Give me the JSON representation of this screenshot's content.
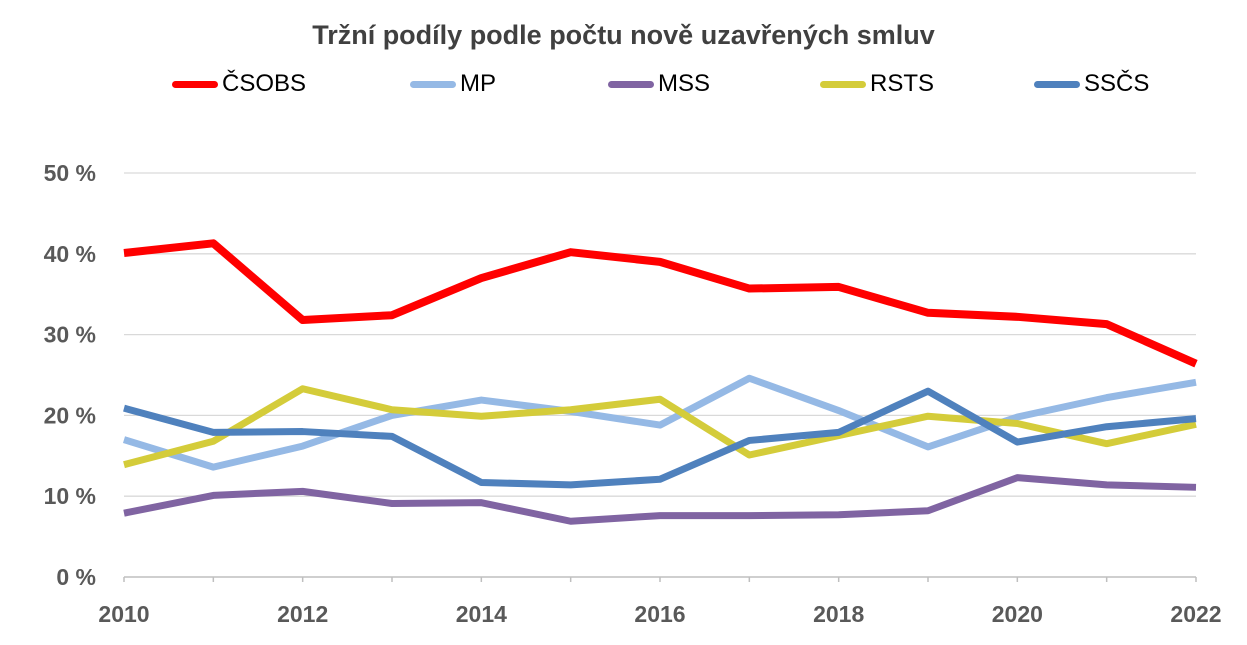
{
  "chart_data": {
    "type": "line",
    "title": "Tržní podíly podle počtu nově uzavřených smluv",
    "xlabel": "",
    "ylabel": "",
    "x": [
      2010,
      2011,
      2012,
      2013,
      2014,
      2015,
      2016,
      2017,
      2018,
      2019,
      2020,
      2021,
      2022
    ],
    "x_tick_labels": [
      "2010",
      "2012",
      "2014",
      "2016",
      "2018",
      "2020",
      "2022"
    ],
    "y_tick_labels": [
      "0 %",
      "10 %",
      "20 %",
      "30 %",
      "40 %",
      "50 %"
    ],
    "ylim": [
      0,
      50
    ],
    "xlim": [
      2010,
      2022
    ],
    "grid": "horizontal",
    "legend_position": "top",
    "series": [
      {
        "name": "ČSOBS",
        "color": "#ff0000",
        "values": [
          40.1,
          41.3,
          31.8,
          32.4,
          37.0,
          40.2,
          39.0,
          35.7,
          35.9,
          32.7,
          32.2,
          31.3,
          26.4
        ]
      },
      {
        "name": "MP",
        "color": "#95b9e5",
        "values": [
          17.0,
          13.6,
          16.2,
          20.0,
          21.9,
          20.5,
          18.8,
          24.6,
          20.6,
          16.1,
          19.8,
          22.2,
          24.1
        ]
      },
      {
        "name": "MSS",
        "color": "#8064a2",
        "values": [
          7.9,
          10.1,
          10.6,
          9.1,
          9.2,
          6.9,
          7.6,
          7.6,
          7.7,
          8.2,
          12.3,
          11.4,
          11.1
        ]
      },
      {
        "name": "RSTS",
        "color": "#d4cc3a",
        "values": [
          13.9,
          16.8,
          23.3,
          20.7,
          19.9,
          20.7,
          22.0,
          15.1,
          17.5,
          19.9,
          19.0,
          16.5,
          18.9
        ]
      },
      {
        "name": "SSČS",
        "color": "#4f81bd",
        "values": [
          20.9,
          17.9,
          18.0,
          17.4,
          11.7,
          11.4,
          12.1,
          16.9,
          17.9,
          23.0,
          16.7,
          18.6,
          19.6
        ]
      }
    ]
  }
}
